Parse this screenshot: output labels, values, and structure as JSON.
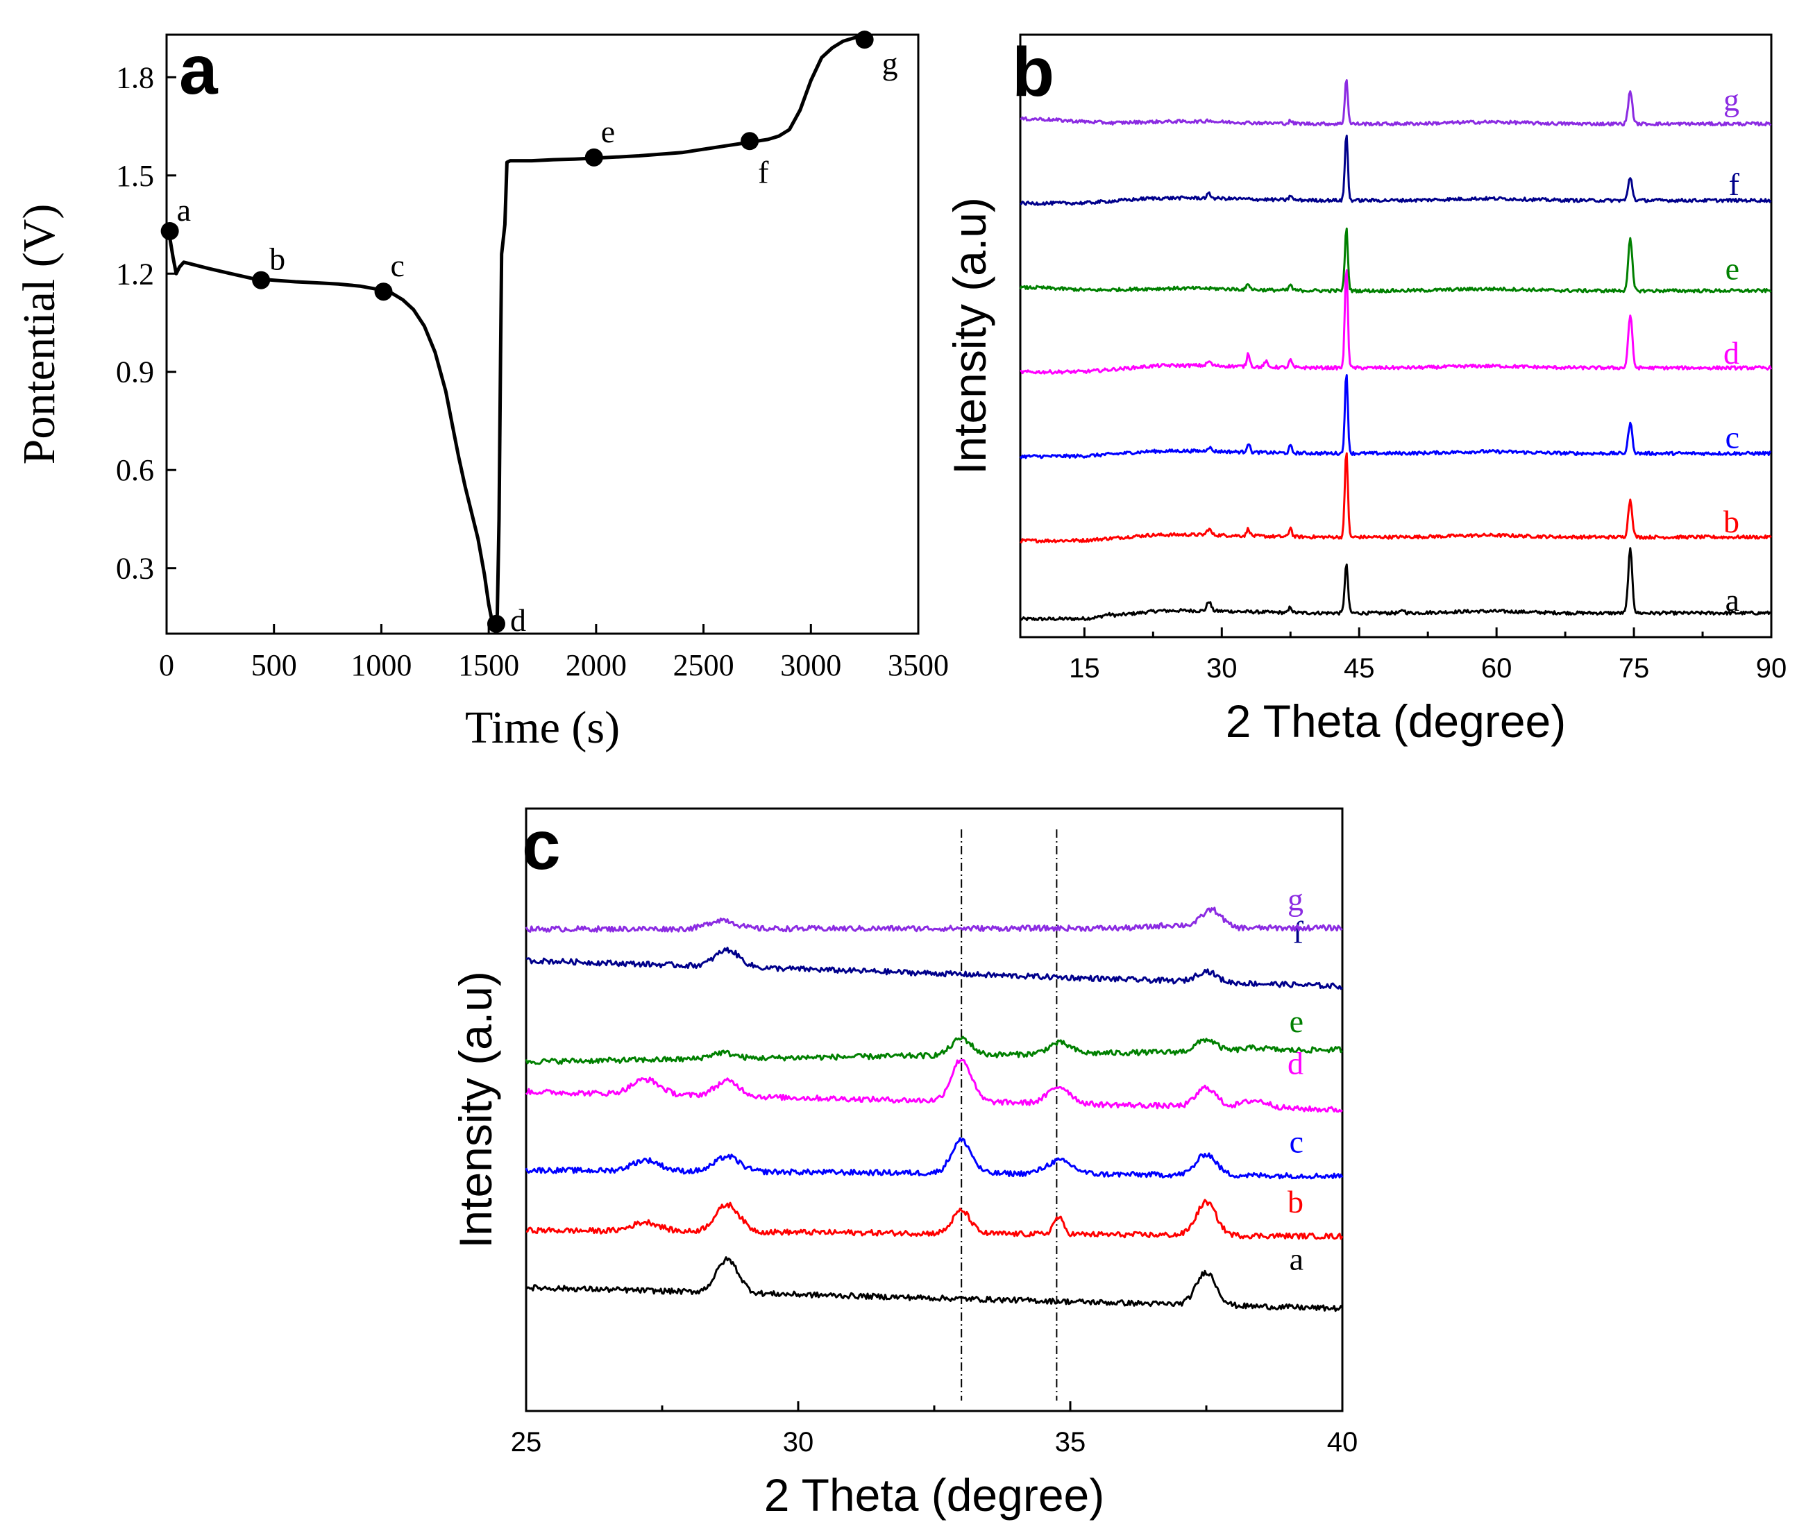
{
  "chart_data": [
    {
      "panel": "a",
      "type": "line",
      "panel_label": "a",
      "xlabel": "Time (s)",
      "ylabel": "Pontential (V)",
      "xlim": [
        0,
        3500
      ],
      "ylim": [
        0.1,
        1.93
      ],
      "xticks": [
        0,
        500,
        1000,
        1500,
        2000,
        2500,
        3000,
        3500
      ],
      "yticks": [
        0.3,
        0.6,
        0.9,
        1.2,
        1.5,
        1.8
      ],
      "series": [
        {
          "color": "#000000",
          "x": [
            0,
            15,
            30,
            45,
            60,
            80,
            110,
            200,
            300,
            400,
            500,
            600,
            700,
            800,
            900,
            1000,
            1050,
            1100,
            1150,
            1200,
            1250,
            1300,
            1330,
            1360,
            1390,
            1420,
            1450,
            1480,
            1500,
            1515,
            1525,
            1535,
            1540,
            1548,
            1555,
            1560,
            1565,
            1575,
            1585,
            1600,
            1700,
            1800,
            1900,
            2000,
            2200,
            2400,
            2600,
            2700,
            2800,
            2850,
            2900,
            2950,
            3000,
            3050,
            3100,
            3150,
            3200,
            3230,
            3260,
            3270
          ],
          "y": [
            1.33,
            1.31,
            1.25,
            1.2,
            1.22,
            1.235,
            1.23,
            1.215,
            1.2,
            1.185,
            1.18,
            1.175,
            1.172,
            1.168,
            1.162,
            1.15,
            1.14,
            1.12,
            1.09,
            1.04,
            0.96,
            0.84,
            0.74,
            0.64,
            0.55,
            0.47,
            0.39,
            0.28,
            0.19,
            0.14,
            0.13,
            0.13,
            0.16,
            0.45,
            0.95,
            1.26,
            1.29,
            1.35,
            1.54,
            1.545,
            1.545,
            1.548,
            1.55,
            1.553,
            1.56,
            1.57,
            1.59,
            1.6,
            1.61,
            1.62,
            1.64,
            1.7,
            1.79,
            1.86,
            1.89,
            1.91,
            1.92,
            1.925,
            1.928,
            1.93
          ]
        }
      ],
      "points": [
        {
          "label": "a",
          "x": 15,
          "y": 1.33
        },
        {
          "label": "b",
          "x": 440,
          "y": 1.18
        },
        {
          "label": "c",
          "x": 1010,
          "y": 1.145
        },
        {
          "label": "d",
          "x": 1535,
          "y": 0.13
        },
        {
          "label": "e",
          "x": 1990,
          "y": 1.555
        },
        {
          "label": "f",
          "x": 2715,
          "y": 1.605
        },
        {
          "label": "g",
          "x": 3250,
          "y": 1.915
        }
      ]
    },
    {
      "panel": "b",
      "type": "line",
      "panel_label": "b",
      "xlabel": "2 Theta (degree)",
      "ylabel": "Intensity (a.u)",
      "xlim": [
        8,
        90
      ],
      "ylim": [
        0,
        10
      ],
      "xticks": [
        15,
        30,
        45,
        60,
        75,
        90
      ],
      "series": [
        {
          "name": "a",
          "color": "#000000",
          "baseline": 0.3,
          "ramp": [
            15,
            23,
            0.1
          ],
          "peaks": [
            [
              17.5,
              0.03,
              0.45
            ],
            [
              28.6,
              0.16,
              0.22
            ],
            [
              37.5,
              0.1,
              0.15
            ],
            [
              43.6,
              0.8,
              0.18
            ],
            [
              49.8,
              0.05,
              0.18
            ],
            [
              74.6,
              1.05,
              0.22
            ]
          ]
        },
        {
          "name": "b",
          "color": "#ff0000",
          "baseline": 1.6,
          "ramp": [
            15,
            22,
            0.06
          ],
          "peaks": [
            [
              28.6,
              0.1,
              0.22
            ],
            [
              32.9,
              0.12,
              0.17
            ],
            [
              37.5,
              0.16,
              0.15
            ],
            [
              43.6,
              1.45,
              0.16
            ],
            [
              74.6,
              0.62,
              0.22
            ]
          ]
        },
        {
          "name": "c",
          "color": "#0000ff",
          "baseline": 3.0,
          "ramp": [
            15,
            22,
            0.05
          ],
          "peaks": [
            [
              28.6,
              0.07,
              0.22
            ],
            [
              32.9,
              0.15,
              0.17
            ],
            [
              37.5,
              0.12,
              0.15
            ],
            [
              43.6,
              1.32,
              0.16
            ],
            [
              74.6,
              0.5,
              0.22
            ]
          ]
        },
        {
          "name": "d",
          "color": "#ff00ff",
          "baseline": 4.4,
          "ramp": [
            15,
            23,
            0.07
          ],
          "peaks": [
            [
              28.6,
              0.07,
              0.22
            ],
            [
              32.9,
              0.22,
              0.17
            ],
            [
              34.8,
              0.1,
              0.15
            ],
            [
              37.5,
              0.13,
              0.15
            ],
            [
              43.6,
              1.68,
              0.16
            ],
            [
              74.6,
              0.88,
              0.22
            ]
          ]
        },
        {
          "name": "e",
          "color": "#008000",
          "baseline": 5.8,
          "ramp": [
            10,
            16,
            -0.05
          ],
          "peaks": [
            [
              32.9,
              0.1,
              0.17
            ],
            [
              37.5,
              0.1,
              0.15
            ],
            [
              43.6,
              1.05,
              0.16
            ],
            [
              74.6,
              0.85,
              0.22
            ]
          ]
        },
        {
          "name": "f",
          "color": "#00008b",
          "baseline": 7.2,
          "ramp": [
            15,
            22,
            0.05
          ],
          "peaks": [
            [
              28.6,
              0.07,
              0.22
            ],
            [
              37.5,
              0.08,
              0.15
            ],
            [
              43.6,
              1.1,
              0.16
            ],
            [
              74.6,
              0.38,
              0.22
            ]
          ]
        },
        {
          "name": "g",
          "color": "#8b2be2",
          "baseline": 8.6,
          "ramp": [
            10,
            18,
            -0.08
          ],
          "peaks": [
            [
              28.6,
              0.03,
              0.22
            ],
            [
              37.5,
              0.05,
              0.15
            ],
            [
              43.6,
              0.75,
              0.16
            ],
            [
              74.6,
              0.55,
              0.22
            ]
          ]
        }
      ]
    },
    {
      "panel": "c",
      "type": "line",
      "panel_label": "c",
      "xlabel": "2 Theta (degree)",
      "ylabel": "Intensity (a.u)",
      "xlim": [
        25,
        40
      ],
      "ylim": [
        0,
        10
      ],
      "xticks": [
        25,
        30,
        35,
        40
      ],
      "reference_lines_x": [
        33.0,
        34.75
      ],
      "series": [
        {
          "name": "a",
          "color": "#000000",
          "y_start": 2.05,
          "y_end": 1.7,
          "peaks": [
            [
              28.7,
              0.55,
              0.2
            ],
            [
              37.5,
              0.55,
              0.18
            ]
          ]
        },
        {
          "name": "b",
          "color": "#ff0000",
          "y_start": 3.0,
          "y_end": 2.9,
          "peaks": [
            [
              27.2,
              0.15,
              0.25
            ],
            [
              28.7,
              0.45,
              0.22
            ],
            [
              33.0,
              0.38,
              0.16
            ],
            [
              34.78,
              0.28,
              0.09
            ],
            [
              37.5,
              0.55,
              0.18
            ]
          ]
        },
        {
          "name": "c",
          "color": "#0000ff",
          "y_start": 4.0,
          "y_end": 3.9,
          "peaks": [
            [
              27.2,
              0.18,
              0.25
            ],
            [
              28.7,
              0.25,
              0.22
            ],
            [
              33.0,
              0.55,
              0.18
            ],
            [
              34.8,
              0.22,
              0.24
            ],
            [
              37.5,
              0.35,
              0.18
            ]
          ]
        },
        {
          "name": "d",
          "color": "#ff00ff",
          "y_start": 5.3,
          "y_end": 5.0,
          "peaks": [
            [
              27.2,
              0.25,
              0.25
            ],
            [
              28.7,
              0.25,
              0.22
            ],
            [
              33.0,
              0.7,
              0.18
            ],
            [
              34.8,
              0.28,
              0.2
            ],
            [
              37.5,
              0.32,
              0.18
            ],
            [
              38.4,
              0.12,
              0.25
            ]
          ]
        },
        {
          "name": "e",
          "color": "#008000",
          "y_start": 5.8,
          "y_end": 6.0,
          "peaks": [
            [
              28.6,
              0.1,
              0.22
            ],
            [
              33.0,
              0.28,
              0.18
            ],
            [
              34.8,
              0.18,
              0.2
            ],
            [
              37.5,
              0.2,
              0.18
            ],
            [
              38.4,
              0.05,
              0.25
            ]
          ]
        },
        {
          "name": "f",
          "color": "#00008b",
          "y_start": 7.48,
          "y_end": 7.05,
          "peaks": [
            [
              28.7,
              0.28,
              0.22
            ],
            [
              37.5,
              0.18,
              0.18
            ]
          ]
        },
        {
          "name": "g",
          "color": "#8b2be2",
          "y_start": 8.0,
          "y_end": 8.02,
          "peaks": [
            [
              28.6,
              0.15,
              0.24
            ],
            [
              36.9,
              0.05,
              0.35
            ],
            [
              37.6,
              0.3,
              0.18
            ]
          ]
        }
      ]
    }
  ]
}
